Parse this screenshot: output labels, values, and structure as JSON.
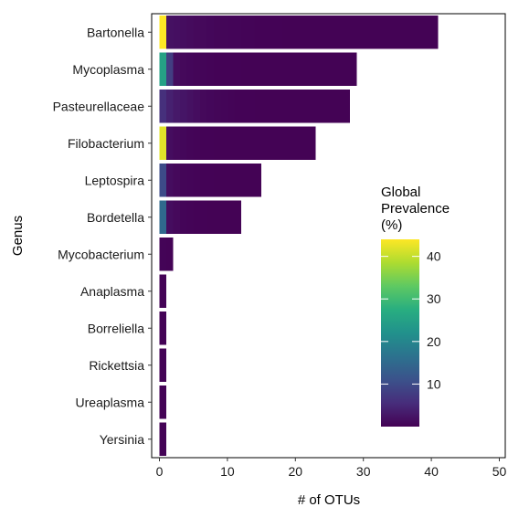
{
  "chart_data": {
    "type": "bar",
    "orientation": "horizontal",
    "stacked": true,
    "categories": [
      "Bartonella",
      "Mycoplasma",
      "Pasteurellaceae",
      "Filobacterium",
      "Leptospira",
      "Bordetella",
      "Mycobacterium",
      "Anaplasma",
      "Borreliella",
      "Rickettsia",
      "Ureaplasma",
      "Yersinia"
    ],
    "totals": [
      41,
      29,
      28,
      23,
      15,
      12,
      2,
      1,
      1,
      1,
      1,
      1
    ],
    "segment_prevalence": [
      [
        44,
        2,
        1.8,
        1.5,
        1.2,
        1,
        1,
        0.8,
        0.6,
        0.6,
        0.5,
        0.5,
        0.4,
        0.4,
        0.3,
        0.3,
        0.3,
        0.3,
        0.2,
        0.2,
        0.2,
        0.2,
        0.2,
        0.2,
        0.2,
        0.2,
        0.2,
        0.2,
        0.2,
        0.2,
        0.2,
        0.2,
        0.2,
        0.2,
        0.2,
        0.2,
        0.2,
        0.2,
        0.2,
        0.2,
        0.2
      ],
      [
        25,
        8,
        1.5,
        1,
        0.8,
        0.6,
        0.5,
        0.4,
        0.3,
        0.3,
        0.3,
        0.3,
        0.2,
        0.2,
        0.2,
        0.2,
        0.2,
        0.2,
        0.2,
        0.2,
        0.2,
        0.2,
        0.2,
        0.2,
        0.2,
        0.2,
        0.2,
        0.2,
        0.2
      ],
      [
        6,
        4,
        3,
        2.5,
        2,
        1.5,
        1,
        0.8,
        0.6,
        0.5,
        0.4,
        0.3,
        0.3,
        0.3,
        0.2,
        0.2,
        0.2,
        0.2,
        0.2,
        0.2,
        0.2,
        0.2,
        0.2,
        0.2,
        0.2,
        0.2,
        0.2,
        0.2
      ],
      [
        42,
        1.5,
        1,
        0.8,
        0.5,
        0.4,
        0.3,
        0.3,
        0.2,
        0.2,
        0.2,
        0.2,
        0.2,
        0.2,
        0.2,
        0.2,
        0.2,
        0.2,
        0.2,
        0.2,
        0.2,
        0.2,
        0.2
      ],
      [
        10,
        1.5,
        1,
        0.6,
        0.5,
        0.4,
        0.3,
        0.3,
        0.2,
        0.2,
        0.2,
        0.2,
        0.2,
        0.2,
        0.2
      ],
      [
        15,
        1.5,
        1,
        0.5,
        0.4,
        0.3,
        0.3,
        0.2,
        0.2,
        0.2,
        0.2,
        0.2
      ],
      [
        0.4,
        0.3
      ],
      [
        0.3
      ],
      [
        0.3
      ],
      [
        0.3
      ],
      [
        0.3
      ],
      [
        0.3
      ]
    ],
    "xlabel": "# of OTUs",
    "ylabel": "Genus",
    "xlim": [
      0,
      50
    ],
    "xticks": [
      0,
      10,
      20,
      30,
      40,
      50
    ],
    "legend": {
      "title_lines": [
        "Global",
        "Prevalence",
        "(%)"
      ],
      "ticks": [
        10,
        20,
        30,
        40
      ],
      "range": [
        0,
        44
      ],
      "placement": "right"
    },
    "colormap": "viridis",
    "grid": false
  }
}
